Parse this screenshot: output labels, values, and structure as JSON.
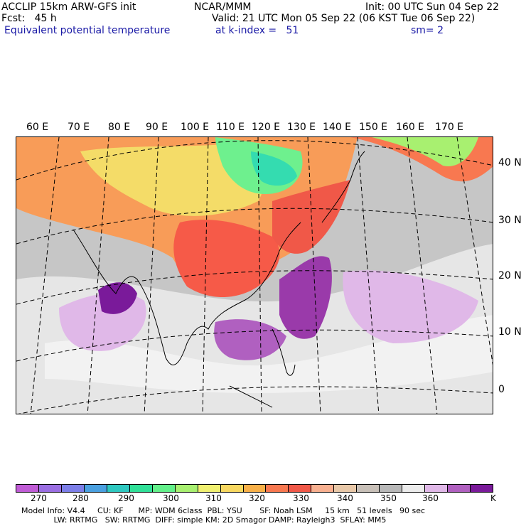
{
  "header": {
    "line1_left": "ACCLIP 15km ARW-GFS init",
    "line1_center": "NCAR/MMM",
    "line1_right": "Init: 00 UTC Sun 04 Sep 22",
    "line2_left": "Fcst:   45 h",
    "line2_right": "Valid: 21 UTC Mon 05 Sep 22 (06 KST Tue 06 Sep 22)",
    "line3_left": "Equivalent potential temperature",
    "line3_center": "at k-index =   51",
    "line3_right": "sm= 2"
  },
  "map": {
    "lon_labels": [
      "60 E",
      "70 E",
      "80 E",
      "90 E",
      "100 E",
      "110 E",
      "120 E",
      "130 E",
      "140 E",
      "150 E",
      "160 E",
      "170 E"
    ],
    "lat_labels": [
      "40 N",
      "30 N",
      "20 N",
      "10 N",
      "0"
    ]
  },
  "colorbar": {
    "unit": "K",
    "tick_labels": [
      "270",
      "280",
      "290",
      "300",
      "310",
      "320",
      "330",
      "340",
      "350",
      "360"
    ],
    "colors": [
      "#c05cd6",
      "#9a6ee2",
      "#7c7ee8",
      "#4aa0e0",
      "#2ec8c0",
      "#30e098",
      "#62f08a",
      "#a8f070",
      "#f0f070",
      "#f8d860",
      "#f8b048",
      "#f87850",
      "#f05848",
      "#f8b090",
      "#e8c8a8",
      "#c8c0b8",
      "#b8b8b8",
      "#ececec",
      "#e0b8e8",
      "#b060c0",
      "#7a1a9a"
    ]
  },
  "footer": {
    "line1": "Model Info: V4.4     CU: KF      MP: WDM 6class  PBL: YSU       SF: Noah LSM     15 km   51 levels   90 sec",
    "line2": "             LW: RRTMG   SW: RRTMG  DIFF: simple KM: 2D Smagor DAMP: Rayleigh3  SFLAY: MM5"
  }
}
